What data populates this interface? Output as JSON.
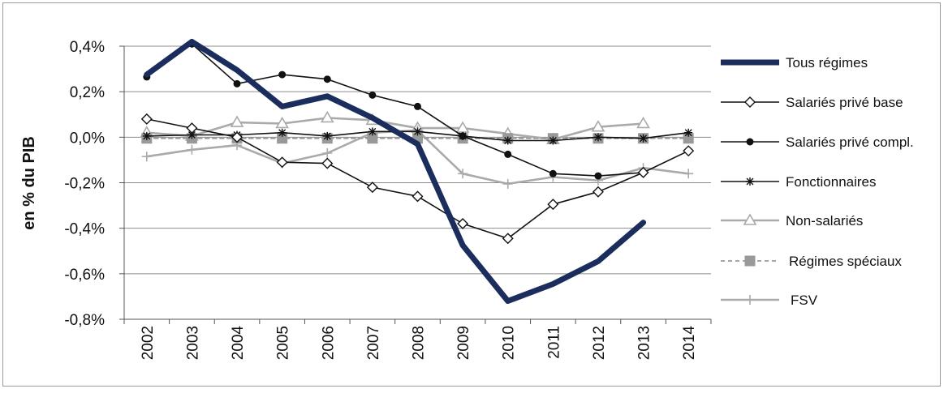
{
  "chart_data": {
    "type": "line",
    "title": "",
    "xlabel": "",
    "ylabel": "en % du PIB",
    "ylim": [
      -0.8,
      0.4
    ],
    "yticks": [
      0.4,
      0.2,
      0.0,
      -0.2,
      -0.4,
      -0.6,
      -0.8
    ],
    "ytick_labels": [
      "0,4%",
      "0,2%",
      "0,0%",
      "-0,2%",
      "-0,4%",
      "-0,6%",
      "-0,8%"
    ],
    "categories": [
      "2002",
      "2003",
      "2004",
      "2005",
      "2006",
      "2007",
      "2008",
      "2009",
      "2010",
      "2011",
      "2012",
      "2013",
      "2014"
    ],
    "grid": "horizontal",
    "legend_position": "right",
    "series": [
      {
        "name": "Tous régimes",
        "color": "#1b2d5c",
        "marker": "none",
        "dash": "solid",
        "width": 7,
        "values": [
          0.275,
          0.42,
          0.295,
          0.135,
          0.18,
          0.085,
          -0.03,
          -0.475,
          -0.72,
          -0.645,
          -0.545,
          -0.375,
          null
        ]
      },
      {
        "name": "Salariés privé base",
        "color": "#111111",
        "marker": "diamond",
        "dash": "solid",
        "width": 1.6,
        "values": [
          0.08,
          0.04,
          0.0,
          -0.11,
          -0.115,
          -0.22,
          -0.26,
          -0.38,
          -0.445,
          -0.295,
          -0.24,
          -0.155,
          -0.06
        ]
      },
      {
        "name": "Salariés privé compl.",
        "color": "#111111",
        "marker": "circle",
        "dash": "solid",
        "width": 1.6,
        "values": [
          0.265,
          0.41,
          0.235,
          0.275,
          0.255,
          0.185,
          0.135,
          0.005,
          -0.075,
          -0.16,
          -0.17,
          -0.155,
          null
        ]
      },
      {
        "name": "Fonctionnaires",
        "color": "#111111",
        "marker": "star",
        "dash": "solid",
        "width": 1.6,
        "values": [
          0.005,
          0.01,
          0.01,
          0.02,
          0.005,
          0.025,
          0.025,
          0.005,
          -0.015,
          -0.015,
          0.0,
          -0.005,
          0.02
        ]
      },
      {
        "name": "Non-salariés",
        "color": "#aaaaaa",
        "marker": "triangle",
        "dash": "solid",
        "width": 2.6,
        "values": [
          0.02,
          0.005,
          0.065,
          0.06,
          0.085,
          0.075,
          0.04,
          0.04,
          0.015,
          -0.01,
          0.045,
          0.06,
          null
        ]
      },
      {
        "name": "Régimes spéciaux",
        "color": "#999999",
        "marker": "square",
        "dash": "dashed",
        "width": 1.8,
        "values": [
          -0.005,
          -0.005,
          -0.005,
          -0.005,
          -0.005,
          -0.005,
          -0.005,
          -0.005,
          -0.005,
          -0.005,
          -0.005,
          -0.005,
          -0.005
        ]
      },
      {
        "name": "FSV",
        "color": "#aaaaaa",
        "marker": "plus",
        "dash": "solid",
        "width": 2.6,
        "values": [
          -0.085,
          -0.055,
          -0.035,
          -0.115,
          -0.07,
          0.02,
          0.03,
          -0.16,
          -0.205,
          -0.175,
          -0.19,
          -0.135,
          -0.16
        ]
      }
    ]
  }
}
